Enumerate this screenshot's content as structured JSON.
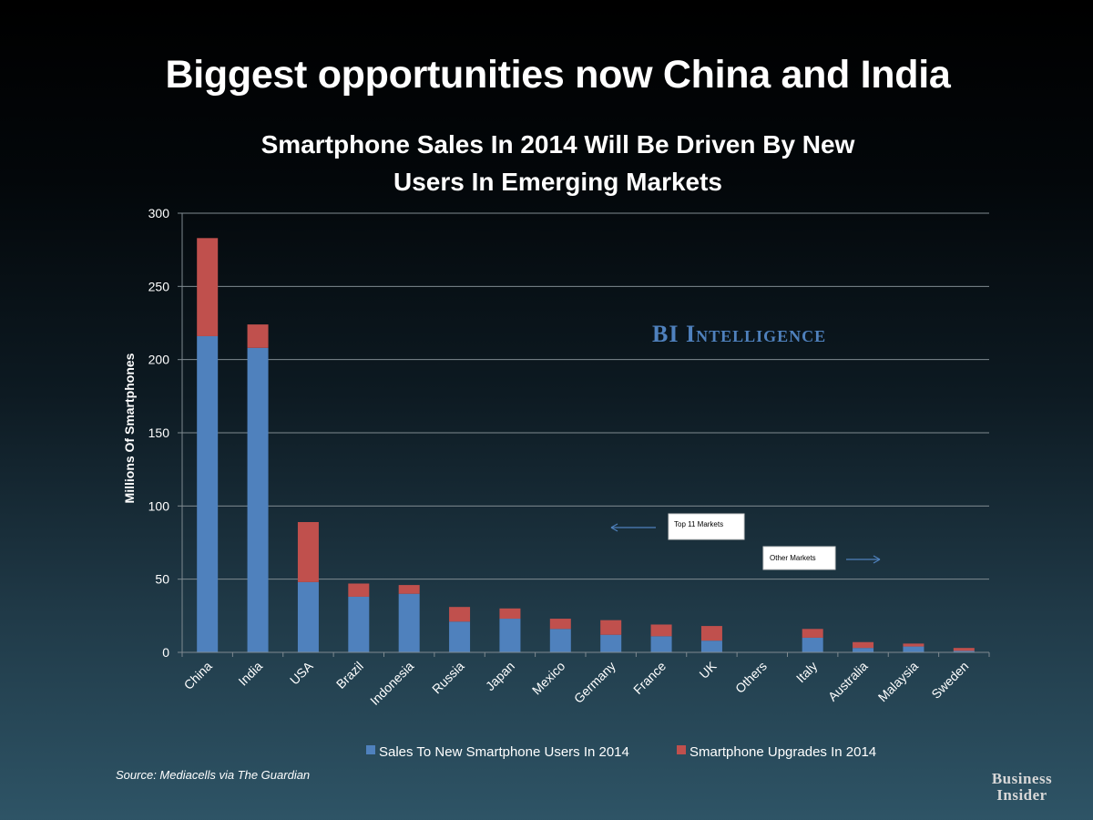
{
  "slide_title": "Biggest opportunities now China and India",
  "source": "Source: Mediacells via The Guardian",
  "logo": {
    "line1": "Business",
    "line2": "Insider"
  },
  "colors": {
    "new_users": "#4f81bd",
    "upgrades": "#c0504d",
    "grid": "#7f8a90",
    "text": "#ffffff"
  },
  "chart_data": {
    "type": "bar",
    "stacked": true,
    "title_lines": [
      "Smartphone Sales In 2014 Will Be Driven By New",
      "Users In Emerging Markets"
    ],
    "xlabel": "",
    "ylabel": "Millions Of  Smartphones",
    "ylim": [
      0,
      300
    ],
    "yticks": [
      0,
      50,
      100,
      150,
      200,
      250,
      300
    ],
    "grid": true,
    "legend_position": "bottom",
    "categories": [
      "China",
      "India",
      "USA",
      "Brazil",
      "Indonesia",
      "Russia",
      "Japan",
      "Mexico",
      "Germany",
      "France",
      "UK",
      "Others",
      "Italy",
      "Australia",
      "Malaysia",
      "Sweden"
    ],
    "series": [
      {
        "name": "Sales To New Smartphone Users In 2014",
        "color": "#4f81bd",
        "values": [
          216,
          208,
          48,
          38,
          40,
          21,
          23,
          16,
          12,
          11,
          8,
          0,
          10,
          3,
          4,
          1
        ]
      },
      {
        "name": "Smartphone Upgrades In 2014",
        "color": "#c0504d",
        "values": [
          67,
          16,
          41,
          9,
          6,
          10,
          7,
          7,
          10,
          8,
          10,
          0,
          6,
          4,
          2,
          2
        ]
      }
    ],
    "annotations": {
      "watermark": "BI Intelligence",
      "top_markets": "Top 11 Markets",
      "other_markets": "Other Markets"
    }
  }
}
